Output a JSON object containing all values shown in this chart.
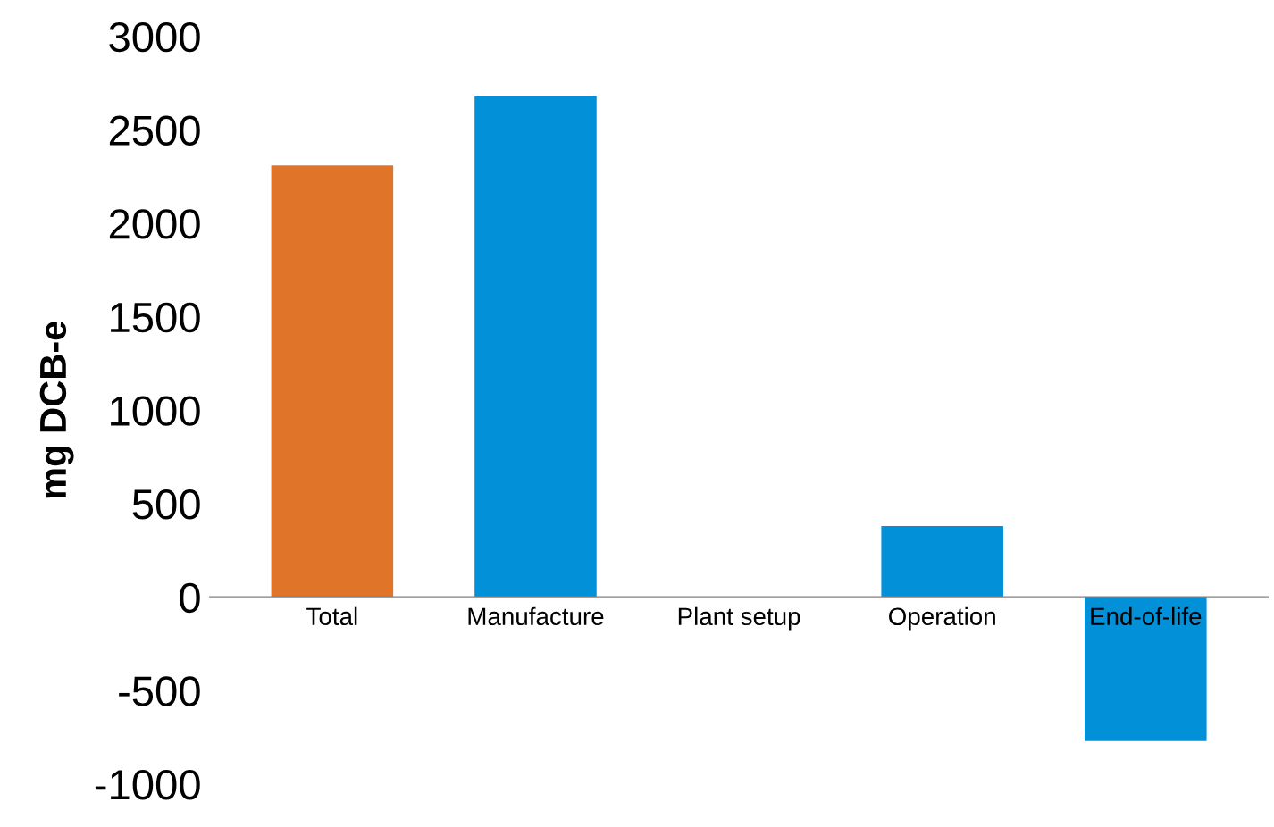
{
  "chart_data": {
    "type": "bar",
    "ylabel": "mg DCB-e",
    "categories": [
      "Total",
      "Manufacture",
      "Plant setup",
      "Operation",
      "End-of-life"
    ],
    "values": [
      2310,
      2680,
      0,
      380,
      -770
    ],
    "colors": [
      "#e07428",
      "#0291d9",
      "#0291d9",
      "#0291d9",
      "#0291d9"
    ],
    "ylim": [
      -1000,
      3000
    ],
    "yticks": [
      -1000,
      -500,
      0,
      500,
      1000,
      1500,
      2000,
      2500,
      3000
    ],
    "grid": false,
    "legend": false
  }
}
